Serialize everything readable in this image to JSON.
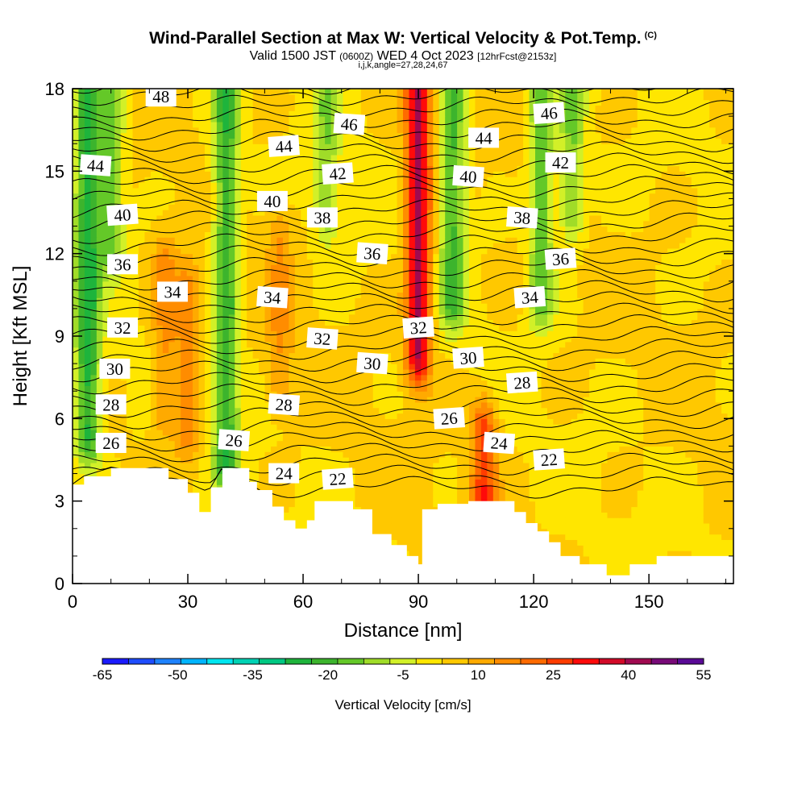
{
  "chart_data": {
    "type": "heatmap",
    "title": "Wind-Parallel Section at Max W: Vertical Velocity & Pot.Temp.",
    "title_mark": "(C)",
    "subtitle_valid": "Valid 1500 JST",
    "subtitle_utc": "(0600Z)",
    "subtitle_date": "WED 4 Oct 2023",
    "subtitle_fcst": "[12hrFcst@2153z]",
    "subtitle_indices": "i,j,k,angle=27,28,24,67",
    "xlabel": "Distance [nm]",
    "ylabel": "Height [Kft MSL]",
    "xlim": [
      0,
      172
    ],
    "ylim": [
      0,
      18
    ],
    "x_ticks": [
      "0",
      "30",
      "60",
      "90",
      "120",
      "150"
    ],
    "y_ticks": [
      "0",
      "3",
      "6",
      "9",
      "12",
      "15",
      "18"
    ],
    "colorbar": {
      "label": "Vertical Velocity [cm/s]",
      "tick_labels": [
        "-65",
        "-50",
        "-35",
        "-20",
        "-5",
        "10",
        "25",
        "40",
        "55"
      ],
      "colors": [
        "#1a1aff",
        "#1e4dff",
        "#1e82ff",
        "#00b4ff",
        "#00e6f0",
        "#00d2b4",
        "#00c882",
        "#1eb43c",
        "#3cb42d",
        "#64c828",
        "#a0dc28",
        "#d2f028",
        "#ffe600",
        "#ffc800",
        "#ffaa00",
        "#ff8c00",
        "#ff6a00",
        "#ff3c00",
        "#ff0a0a",
        "#d20a28",
        "#a00a50",
        "#780a78",
        "#5a0a96"
      ]
    },
    "velocity_features": [
      {
        "x": 4,
        "z_from": 6,
        "z_to": 18,
        "w": -28
      },
      {
        "x": 10,
        "z_from": 13,
        "z_to": 18,
        "w": -18
      },
      {
        "x": 24,
        "z_from": 7,
        "z_to": 11,
        "w": 12
      },
      {
        "x": 30,
        "z_from": 6,
        "z_to": 10,
        "w": 14
      },
      {
        "x": 40,
        "z_from": 5,
        "z_to": 18,
        "w": -25
      },
      {
        "x": 54,
        "z_from": 8,
        "z_to": 12,
        "w": 10
      },
      {
        "x": 66,
        "z_from": 14,
        "z_to": 18,
        "w": -14
      },
      {
        "x": 90,
        "z_from": 9,
        "z_to": 18,
        "w": 38
      },
      {
        "x": 99,
        "z_from": 11,
        "z_to": 18,
        "w": -22
      },
      {
        "x": 107,
        "z_from": 3.5,
        "z_to": 5,
        "w": 24
      },
      {
        "x": 122,
        "z_from": 11,
        "z_to": 18,
        "w": -20
      },
      {
        "x": 130,
        "z_from": 14,
        "z_to": 18,
        "w": -16
      }
    ],
    "theta_contours": [
      {
        "value": "22",
        "x": 69,
        "z": 3.8
      },
      {
        "value": "24",
        "x": 55,
        "z": 4.0
      },
      {
        "value": "24",
        "x": 111,
        "z": 5.1
      },
      {
        "value": "22",
        "x": 124,
        "z": 4.5
      },
      {
        "value": "26",
        "x": 10,
        "z": 5.1
      },
      {
        "value": "26",
        "x": 42,
        "z": 5.2
      },
      {
        "value": "26",
        "x": 98,
        "z": 6.0
      },
      {
        "value": "28",
        "x": 10,
        "z": 6.5
      },
      {
        "value": "28",
        "x": 55,
        "z": 6.5
      },
      {
        "value": "28",
        "x": 117,
        "z": 7.3
      },
      {
        "value": "30",
        "x": 11,
        "z": 7.8
      },
      {
        "value": "30",
        "x": 78,
        "z": 8.0
      },
      {
        "value": "30",
        "x": 103,
        "z": 8.2
      },
      {
        "value": "32",
        "x": 13,
        "z": 9.3
      },
      {
        "value": "32",
        "x": 65,
        "z": 8.9
      },
      {
        "value": "32",
        "x": 90,
        "z": 9.3
      },
      {
        "value": "34",
        "x": 26,
        "z": 10.6
      },
      {
        "value": "34",
        "x": 52,
        "z": 10.4
      },
      {
        "value": "34",
        "x": 119,
        "z": 10.4
      },
      {
        "value": "36",
        "x": 13,
        "z": 11.6
      },
      {
        "value": "36",
        "x": 78,
        "z": 12.0
      },
      {
        "value": "36",
        "x": 127,
        "z": 11.8
      },
      {
        "value": "38",
        "x": 65,
        "z": 13.3
      },
      {
        "value": "38",
        "x": 117,
        "z": 13.3
      },
      {
        "value": "40",
        "x": 13,
        "z": 13.4
      },
      {
        "value": "40",
        "x": 52,
        "z": 13.9
      },
      {
        "value": "40",
        "x": 103,
        "z": 14.8
      },
      {
        "value": "42",
        "x": 69,
        "z": 14.9
      },
      {
        "value": "42",
        "x": 127,
        "z": 15.3
      },
      {
        "value": "44",
        "x": 6,
        "z": 15.2
      },
      {
        "value": "44",
        "x": 55,
        "z": 15.9
      },
      {
        "value": "44",
        "x": 107,
        "z": 16.2
      },
      {
        "value": "46",
        "x": 72,
        "z": 16.7
      },
      {
        "value": "46",
        "x": 124,
        "z": 17.1
      },
      {
        "value": "48",
        "x": 23,
        "z": 17.7
      }
    ],
    "terrain": [
      {
        "x": 0,
        "z": 3.6
      },
      {
        "x": 3,
        "z": 3.9
      },
      {
        "x": 10,
        "z": 4.2
      },
      {
        "x": 25,
        "z": 3.8
      },
      {
        "x": 30,
        "z": 3.3
      },
      {
        "x": 33,
        "z": 2.6
      },
      {
        "x": 36,
        "z": 3.5
      },
      {
        "x": 39,
        "z": 4.2
      },
      {
        "x": 46,
        "z": 3.7
      },
      {
        "x": 48,
        "z": 3.4
      },
      {
        "x": 52,
        "z": 2.8
      },
      {
        "x": 55,
        "z": 2.3
      },
      {
        "x": 58,
        "z": 2.0
      },
      {
        "x": 61,
        "z": 2.3
      },
      {
        "x": 63,
        "z": 3.0
      },
      {
        "x": 73,
        "z": 2.7
      },
      {
        "x": 78,
        "z": 1.8
      },
      {
        "x": 83,
        "z": 1.4
      },
      {
        "x": 87,
        "z": 1.0
      },
      {
        "x": 90,
        "z": 0.7
      },
      {
        "x": 91,
        "z": 2.7
      },
      {
        "x": 95,
        "z": 2.9
      },
      {
        "x": 103,
        "z": 3.0
      },
      {
        "x": 111,
        "z": 3.0
      },
      {
        "x": 115,
        "z": 2.6
      },
      {
        "x": 118,
        "z": 2.2
      },
      {
        "x": 121,
        "z": 1.9
      },
      {
        "x": 124,
        "z": 1.5
      },
      {
        "x": 127,
        "z": 1.0
      },
      {
        "x": 132,
        "z": 0.7
      },
      {
        "x": 139,
        "z": 0.3
      },
      {
        "x": 145,
        "z": 0.7
      },
      {
        "x": 152,
        "z": 1.0
      },
      {
        "x": 172,
        "z": 1.0
      }
    ]
  }
}
